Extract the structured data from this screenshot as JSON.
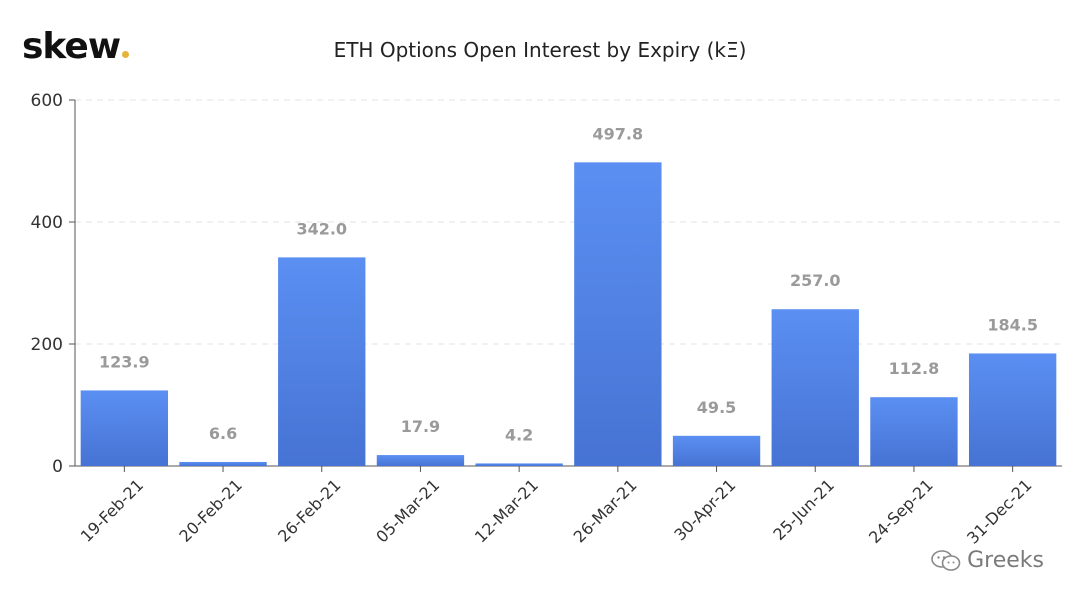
{
  "brand": {
    "name": "skew",
    "dot_color": "#e6b23a"
  },
  "watermark": {
    "text": "Greeks",
    "icon": "wechat-bubbles-icon"
  },
  "colors": {
    "bar_top": "#5b8ff2",
    "bar_bottom": "#4673d4",
    "value_label": "#9a9a9a",
    "axis_text": "#333333",
    "grid": "#e3e3e3",
    "axis_line": "#555555"
  },
  "chart_data": {
    "type": "bar",
    "title": "ETH Options Open Interest by Expiry (kΞ)",
    "xlabel": "",
    "ylabel": "",
    "categories": [
      "19-Feb-21",
      "20-Feb-21",
      "26-Feb-21",
      "05-Mar-21",
      "12-Mar-21",
      "26-Mar-21",
      "30-Apr-21",
      "25-Jun-21",
      "24-Sep-21",
      "31-Dec-21"
    ],
    "values": [
      123.9,
      6.6,
      342.0,
      17.9,
      4.2,
      497.8,
      49.5,
      257.0,
      112.8,
      184.5
    ],
    "value_labels": [
      "123.9",
      "6.6",
      "342.0",
      "17.9",
      "4.2",
      "497.8",
      "49.5",
      "257.0",
      "112.8",
      "184.5"
    ],
    "ylim": [
      0,
      600
    ],
    "yticks": [
      0,
      200,
      400,
      600
    ],
    "ytick_labels": [
      "0",
      "200",
      "400",
      "600"
    ],
    "grid": true,
    "legend": "none"
  }
}
